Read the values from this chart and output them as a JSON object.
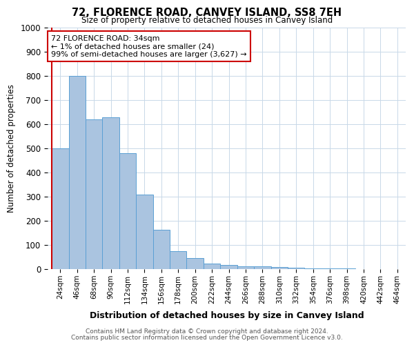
{
  "title": "72, FLORENCE ROAD, CANVEY ISLAND, SS8 7EH",
  "subtitle": "Size of property relative to detached houses in Canvey Island",
  "xlabel": "Distribution of detached houses by size in Canvey Island",
  "ylabel": "Number of detached properties",
  "footer_line1": "Contains HM Land Registry data © Crown copyright and database right 2024.",
  "footer_line2": "Contains public sector information licensed under the Open Government Licence v3.0.",
  "bins": [
    "24sqm",
    "46sqm",
    "68sqm",
    "90sqm",
    "112sqm",
    "134sqm",
    "156sqm",
    "178sqm",
    "200sqm",
    "222sqm",
    "244sqm",
    "266sqm",
    "288sqm",
    "310sqm",
    "332sqm",
    "354sqm",
    "376sqm",
    "398sqm",
    "420sqm",
    "442sqm",
    "464sqm"
  ],
  "values": [
    500,
    800,
    620,
    630,
    480,
    310,
    162,
    75,
    45,
    24,
    18,
    11,
    11,
    8,
    5,
    4,
    3,
    2,
    0,
    0,
    0
  ],
  "bar_color": "#aac4e0",
  "bar_edge_color": "#5a9fd4",
  "annotation_text_line1": "72 FLORENCE ROAD: 34sqm",
  "annotation_text_line2": "← 1% of detached houses are smaller (24)",
  "annotation_text_line3": "99% of semi-detached houses are larger (3,627) →",
  "annotation_box_color": "#ffffff",
  "annotation_box_edge": "#cc0000",
  "red_line_color": "#cc0000",
  "ylim": [
    0,
    1000
  ],
  "background_color": "#ffffff",
  "grid_color": "#c8d8e8"
}
